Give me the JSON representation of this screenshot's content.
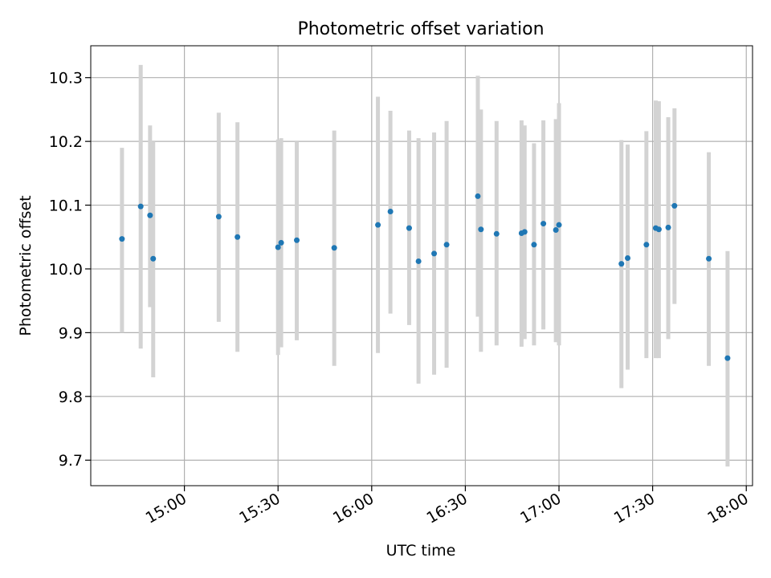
{
  "chart_data": {
    "type": "scatter",
    "title": "Photometric offset variation",
    "xlabel": "UTC time",
    "ylabel": "Photometric offset",
    "x_ticks": [
      "15:00",
      "15:30",
      "16:00",
      "16:30",
      "17:00",
      "17:30",
      "18:00"
    ],
    "y_ticks": [
      "9.7",
      "9.8",
      "9.9",
      "10.0",
      "10.1",
      "10.2",
      "10.3"
    ],
    "xlim": [
      "14:30",
      "18:00"
    ],
    "ylim": [
      9.66,
      10.35
    ],
    "grid": true,
    "series": [
      {
        "marker_color": "#1f77b4",
        "errorbar_color": "#d3d3d3",
        "points": [
          {
            "x": "14:40",
            "y": 10.047,
            "low": 9.9,
            "high": 10.19
          },
          {
            "x": "14:46",
            "y": 10.098,
            "low": 9.875,
            "high": 10.32
          },
          {
            "x": "14:49",
            "y": 10.084,
            "low": 9.94,
            "high": 10.225
          },
          {
            "x": "14:50",
            "y": 10.016,
            "low": 9.83,
            "high": 10.2
          },
          {
            "x": "15:11",
            "y": 10.082,
            "low": 9.917,
            "high": 10.245
          },
          {
            "x": "15:17",
            "y": 10.05,
            "low": 9.87,
            "high": 10.23
          },
          {
            "x": "15:30",
            "y": 10.034,
            "low": 9.865,
            "high": 10.203
          },
          {
            "x": "15:31",
            "y": 10.041,
            "low": 9.877,
            "high": 10.205
          },
          {
            "x": "15:36",
            "y": 10.045,
            "low": 9.888,
            "high": 10.2
          },
          {
            "x": "15:48",
            "y": 10.033,
            "low": 9.848,
            "high": 10.217
          },
          {
            "x": "16:02",
            "y": 10.069,
            "low": 9.868,
            "high": 10.27
          },
          {
            "x": "16:06",
            "y": 10.09,
            "low": 9.93,
            "high": 10.248
          },
          {
            "x": "16:12",
            "y": 10.064,
            "low": 9.912,
            "high": 10.217
          },
          {
            "x": "16:15",
            "y": 10.012,
            "low": 9.82,
            "high": 10.205
          },
          {
            "x": "16:20",
            "y": 10.024,
            "low": 9.834,
            "high": 10.214
          },
          {
            "x": "16:24",
            "y": 10.038,
            "low": 9.845,
            "high": 10.232
          },
          {
            "x": "16:34",
            "y": 10.114,
            "low": 9.925,
            "high": 10.303
          },
          {
            "x": "16:35",
            "y": 10.062,
            "low": 9.87,
            "high": 10.25
          },
          {
            "x": "16:40",
            "y": 10.055,
            "low": 9.88,
            "high": 10.232
          },
          {
            "x": "16:48",
            "y": 10.056,
            "low": 9.878,
            "high": 10.233
          },
          {
            "x": "16:49",
            "y": 10.058,
            "low": 9.89,
            "high": 10.225
          },
          {
            "x": "16:52",
            "y": 10.038,
            "low": 9.88,
            "high": 10.197
          },
          {
            "x": "16:55",
            "y": 10.071,
            "low": 9.905,
            "high": 10.233
          },
          {
            "x": "16:59",
            "y": 10.061,
            "low": 9.885,
            "high": 10.235
          },
          {
            "x": "17:00",
            "y": 10.069,
            "low": 9.88,
            "high": 10.26
          },
          {
            "x": "17:20",
            "y": 10.008,
            "low": 9.813,
            "high": 10.202
          },
          {
            "x": "17:22",
            "y": 10.017,
            "low": 9.842,
            "high": 10.195
          },
          {
            "x": "17:28",
            "y": 10.038,
            "low": 9.86,
            "high": 10.216
          },
          {
            "x": "17:31",
            "y": 10.064,
            "low": 9.86,
            "high": 10.264
          },
          {
            "x": "17:32",
            "y": 10.062,
            "low": 9.86,
            "high": 10.263
          },
          {
            "x": "17:35",
            "y": 10.065,
            "low": 9.89,
            "high": 10.238
          },
          {
            "x": "17:37",
            "y": 10.099,
            "low": 9.945,
            "high": 10.252
          },
          {
            "x": "17:48",
            "y": 10.016,
            "low": 9.848,
            "high": 10.183
          },
          {
            "x": "17:54",
            "y": 9.86,
            "low": 9.69,
            "high": 10.028
          }
        ]
      }
    ]
  }
}
